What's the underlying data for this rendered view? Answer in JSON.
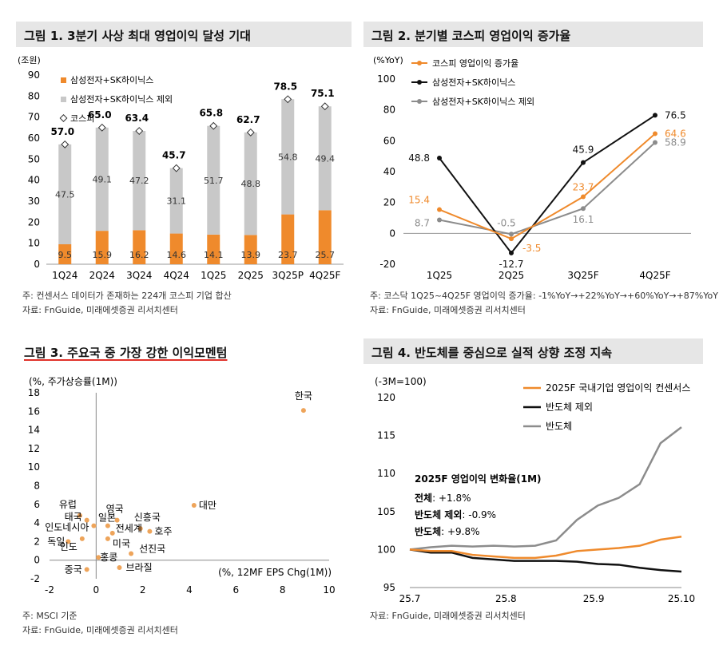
{
  "fig1": {
    "title": "그림 1. 3분기 사상 최대 영업이익 달성 기대",
    "note1": "주: 컨센서스 데이터가 존재하는 224개 코스피 기업 합산",
    "note2": "자료: FnGuide, 미래에셋증권 리서치센터"
  },
  "fig2": {
    "title": "그림 2. 분기별 코스피 영업이익 증가율",
    "note1": "주: 코스닥 1Q25~4Q25F 영업이익 증가율: -1%YoY→+22%YoY→+60%YoY→+87%YoY",
    "note2": "자료: FnGuide, 미래에셋증권 리서치센터"
  },
  "fig3": {
    "title": "그림 3. 주요국 중 가장 강한 이익모멘텀",
    "note1": "주: MSCI 기준",
    "note2": "자료: FnGuide, 미래에셋증권 리서치센터"
  },
  "fig4": {
    "title": "그림 4. 반도체를 중심으로 실적 상향 조정 지속",
    "note1": "자료: FnGuide, 미래에셋증권 리서치센터",
    "annotation": {
      "heading": "2025F 영업이익 변화율(1M)",
      "lines": [
        {
          "label": "전체",
          "value": ": +1.8%"
        },
        {
          "label": "반도체 제외",
          "value": ": -0.9%"
        },
        {
          "label": "반도체",
          "value": ": +9.8%"
        }
      ]
    }
  },
  "colors": {
    "orange": "#ef8a2c",
    "gray": "#c8c8c8",
    "darkgray": "#8c8c8c",
    "black": "#111111",
    "dot": "#eea45a"
  },
  "chart_data": [
    {
      "type": "bar",
      "stacked": true,
      "unit_label": "(조원)",
      "categories": [
        "1Q24",
        "2Q24",
        "3Q24",
        "4Q24",
        "1Q25",
        "2Q25",
        "3Q25P",
        "4Q25F"
      ],
      "series": [
        {
          "name": "삼성전자+SK하이닉스",
          "color": "#ef8a2c",
          "values": [
            9.5,
            15.9,
            16.2,
            14.6,
            14.1,
            13.9,
            23.7,
            25.7
          ]
        },
        {
          "name": "삼성전자+SK하이닉스 제외",
          "color": "#c8c8c8",
          "values": [
            47.5,
            49.1,
            47.2,
            31.1,
            51.7,
            48.8,
            54.8,
            49.4
          ]
        }
      ],
      "kospi": {
        "name": "코스피",
        "values": [
          57.0,
          65.0,
          63.4,
          45.7,
          65.8,
          62.7,
          78.5,
          75.1
        ]
      },
      "ylim": [
        0,
        90
      ],
      "yticks": [
        0,
        10,
        20,
        30,
        40,
        50,
        60,
        70,
        80,
        90
      ],
      "legend": "top-left"
    },
    {
      "type": "line",
      "unit_label": "(%YoY)",
      "categories": [
        "1Q25",
        "2Q25",
        "3Q25F",
        "4Q25F"
      ],
      "series": [
        {
          "name": "코스피 영업이익 증가율",
          "color": "#ef8a2c",
          "values": [
            15.4,
            -3.5,
            23.7,
            64.6
          ]
        },
        {
          "name": "삼성전자+SK하이닉스",
          "color": "#111111",
          "values": [
            48.8,
            -12.7,
            45.9,
            76.5
          ]
        },
        {
          "name": "삼성전자+SK하이닉스 제외",
          "color": "#8c8c8c",
          "values": [
            8.7,
            -0.5,
            16.1,
            58.9
          ]
        }
      ],
      "ylim": [
        -20,
        100
      ],
      "yticks": [
        -20,
        0,
        20,
        40,
        60,
        80,
        100
      ],
      "legend": "top-left"
    },
    {
      "type": "scatter",
      "ylabel": "(%, 주가상승률(1M))",
      "xlabel": "(%, 12MF EPS Chg(1M))",
      "xlim": [
        -2,
        10
      ],
      "ylim": [
        -2,
        18
      ],
      "xticks": [
        -2,
        0,
        2,
        4,
        6,
        8,
        10
      ],
      "yticks": [
        -2,
        0,
        2,
        4,
        6,
        8,
        10,
        12,
        14,
        16,
        18
      ],
      "points": [
        {
          "label": "한국",
          "x": 8.9,
          "y": 16.1
        },
        {
          "label": "대만",
          "x": 4.2,
          "y": 5.9
        },
        {
          "label": "영국",
          "x": 0.9,
          "y": 4.3
        },
        {
          "label": "일본",
          "x": 0.5,
          "y": 3.7
        },
        {
          "label": "신흥국",
          "x": 1.9,
          "y": 3.4
        },
        {
          "label": "호주",
          "x": 2.3,
          "y": 3.1
        },
        {
          "label": "전세계",
          "x": 0.7,
          "y": 2.9
        },
        {
          "label": "미국",
          "x": 0.5,
          "y": 2.3
        },
        {
          "label": "유럽",
          "x": -0.7,
          "y": 4.8
        },
        {
          "label": "태국",
          "x": -0.4,
          "y": 4.3
        },
        {
          "label": "인도네시아",
          "x": -0.1,
          "y": 3.7
        },
        {
          "label": "독일",
          "x": -1.2,
          "y": 2.0
        },
        {
          "label": "인도",
          "x": -0.6,
          "y": 2.3
        },
        {
          "label": "홍콩",
          "x": 0.1,
          "y": 0.3
        },
        {
          "label": "선진국",
          "x": 1.5,
          "y": 0.7
        },
        {
          "label": "중국",
          "x": -0.4,
          "y": -1.0
        },
        {
          "label": "브라질",
          "x": 1.0,
          "y": -0.8
        }
      ]
    },
    {
      "type": "line",
      "unit_label": "(-3M=100)",
      "xticks": [
        "25.7",
        "25.8",
        "25.9",
        "25.10"
      ],
      "x": [
        0,
        1,
        2,
        3,
        4,
        5,
        6,
        7,
        8,
        9,
        10,
        11,
        12,
        13
      ],
      "series": [
        {
          "name": "2025F 국내기업 영업이익 컨센서스",
          "color": "#ef8a2c",
          "values": [
            100,
            99.8,
            99.8,
            99.3,
            99.1,
            98.9,
            98.9,
            99.2,
            99.8,
            100.0,
            100.2,
            100.5,
            101.3,
            101.7
          ]
        },
        {
          "name": "반도체 제외",
          "color": "#111111",
          "values": [
            100,
            99.6,
            99.6,
            98.9,
            98.7,
            98.5,
            98.5,
            98.5,
            98.4,
            98.1,
            98.0,
            97.6,
            97.3,
            97.1
          ]
        },
        {
          "name": "반도체",
          "color": "#8c8c8c",
          "values": [
            100,
            100.3,
            100.5,
            100.4,
            100.5,
            100.4,
            100.5,
            101.2,
            103.9,
            105.8,
            106.8,
            108.6,
            114.0,
            116.1
          ]
        }
      ],
      "ylim": [
        95,
        120
      ],
      "yticks": [
        95,
        100,
        105,
        110,
        115,
        120
      ],
      "legend": "top-right"
    }
  ]
}
